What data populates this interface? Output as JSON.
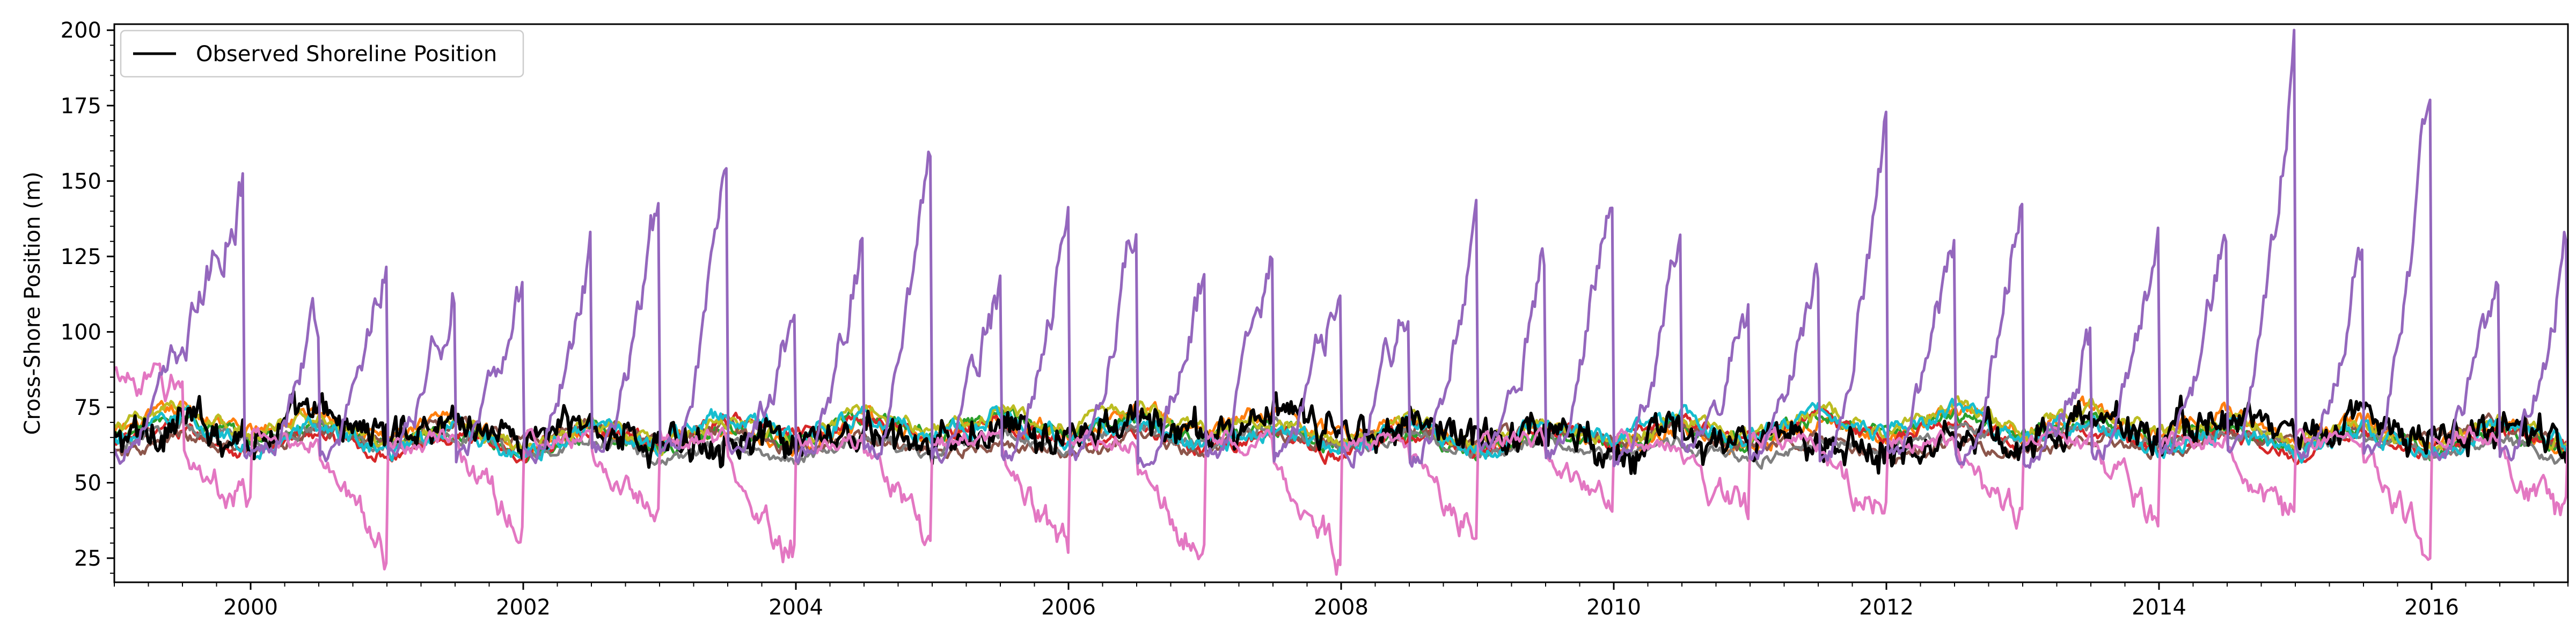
{
  "chart_data": {
    "type": "line",
    "title": "",
    "xlabel": "",
    "ylabel": "Cross-Shore Position (m)",
    "xlim": [
      "1999-01-01",
      "2017-01-01"
    ],
    "ylim": [
      17,
      202
    ],
    "x_major_ticks": [
      "2000",
      "2002",
      "2004",
      "2006",
      "2008",
      "2010",
      "2012",
      "2014",
      "2016"
    ],
    "y_major_ticks": [
      25,
      50,
      75,
      100,
      125,
      150,
      175,
      200
    ],
    "grid": false,
    "legend": {
      "position": "top-left",
      "entries": [
        "Observed Shoreline Position"
      ]
    },
    "series": [
      {
        "name": "Observed Shoreline Position",
        "color": "#000000",
        "kind": "observed",
        "base": 65,
        "amp": 6,
        "noise": 3.2
      },
      {
        "color": "#ff7f0e",
        "kind": "model",
        "base": 66,
        "amp": 8,
        "noise": 1.8
      },
      {
        "color": "#2ca02c",
        "kind": "model",
        "base": 65,
        "amp": 7,
        "noise": 1.6
      },
      {
        "color": "#d62728",
        "kind": "model",
        "base": 64,
        "amp": 7,
        "noise": 1.6
      },
      {
        "color": "#9467bd",
        "kind": "model_purple",
        "base": 60,
        "amp": 0,
        "noise": 2.2
      },
      {
        "color": "#8c564b",
        "kind": "model",
        "base": 63,
        "amp": 6,
        "noise": 1.5
      },
      {
        "color": "#e377c2",
        "kind": "model_pink",
        "base": 68,
        "amp": 0,
        "noise": 2.0
      },
      {
        "color": "#7f7f7f",
        "kind": "model",
        "base": 62,
        "amp": 6,
        "noise": 1.5
      },
      {
        "color": "#bcbd22",
        "kind": "model",
        "base": 67,
        "amp": 8,
        "noise": 1.7
      },
      {
        "color": "#17becf",
        "kind": "model",
        "base": 65,
        "amp": 9,
        "noise": 2.0
      }
    ],
    "purple_cycles": [
      {
        "t0": 1999.08,
        "t1": 1999.95,
        "peak": 152
      },
      {
        "t0": 2000.1,
        "t1": 2000.5,
        "peak": 107
      },
      {
        "t0": 2000.6,
        "t1": 2001.0,
        "peak": 126
      },
      {
        "t0": 2001.1,
        "t1": 2001.5,
        "peak": 118
      },
      {
        "t0": 2001.6,
        "t1": 2002.0,
        "peak": 120
      },
      {
        "t0": 2002.1,
        "t1": 2002.5,
        "peak": 131
      },
      {
        "t0": 2002.6,
        "t1": 2003.0,
        "peak": 146
      },
      {
        "t0": 2003.1,
        "t1": 2003.5,
        "peak": 150
      },
      {
        "t0": 2003.6,
        "t1": 2004.0,
        "peak": 110
      },
      {
        "t0": 2004.1,
        "t1": 2004.5,
        "peak": 137
      },
      {
        "t0": 2004.6,
        "t1": 2005.0,
        "peak": 168
      },
      {
        "t0": 2005.1,
        "t1": 2005.5,
        "peak": 118
      },
      {
        "t0": 2005.6,
        "t1": 2006.0,
        "peak": 135
      },
      {
        "t0": 2006.1,
        "t1": 2006.5,
        "peak": 144
      },
      {
        "t0": 2006.6,
        "t1": 2007.0,
        "peak": 117
      },
      {
        "t0": 2007.1,
        "t1": 2007.5,
        "peak": 131
      },
      {
        "t0": 2007.6,
        "t1": 2008.0,
        "peak": 122
      },
      {
        "t0": 2008.1,
        "t1": 2008.5,
        "peak": 117
      },
      {
        "t0": 2008.6,
        "t1": 2009.0,
        "peak": 132
      },
      {
        "t0": 2009.1,
        "t1": 2009.5,
        "peak": 122
      },
      {
        "t0": 2009.6,
        "t1": 2010.0,
        "peak": 158
      },
      {
        "t0": 2010.1,
        "t1": 2010.5,
        "peak": 133
      },
      {
        "t0": 2010.6,
        "t1": 2011.0,
        "peak": 114
      },
      {
        "t0": 2011.1,
        "t1": 2011.5,
        "peak": 122
      },
      {
        "t0": 2011.6,
        "t1": 2012.0,
        "peak": 176
      },
      {
        "t0": 2012.1,
        "t1": 2012.5,
        "peak": 133
      },
      {
        "t0": 2012.6,
        "t1": 2013.0,
        "peak": 150
      },
      {
        "t0": 2013.1,
        "t1": 2013.5,
        "peak": 95
      },
      {
        "t0": 2013.6,
        "t1": 2014.0,
        "peak": 130
      },
      {
        "t0": 2014.1,
        "t1": 2014.5,
        "peak": 138
      },
      {
        "t0": 2014.6,
        "t1": 2015.0,
        "peak": 196
      },
      {
        "t0": 2015.1,
        "t1": 2015.5,
        "peak": 136
      },
      {
        "t0": 2015.6,
        "t1": 2016.0,
        "peak": 183
      },
      {
        "t0": 2016.1,
        "t1": 2016.5,
        "peak": 125
      },
      {
        "t0": 2016.6,
        "t1": 2017.0,
        "peak": 131
      }
    ],
    "pink_cycles": [
      {
        "t0": 1999.0,
        "t1": 1999.5,
        "peak": 86,
        "low": 80
      },
      {
        "t0": 1999.5,
        "t1": 2000.0,
        "peak": 60,
        "low": 41
      },
      {
        "t0": 2000.5,
        "t1": 2001.0,
        "peak": 60,
        "low": 28
      },
      {
        "t0": 2001.5,
        "t1": 2002.0,
        "peak": 62,
        "low": 36
      },
      {
        "t0": 2002.5,
        "t1": 2003.0,
        "peak": 60,
        "low": 36
      },
      {
        "t0": 2003.5,
        "t1": 2004.0,
        "peak": 58,
        "low": 27
      },
      {
        "t0": 2004.5,
        "t1": 2005.0,
        "peak": 60,
        "low": 35
      },
      {
        "t0": 2005.5,
        "t1": 2006.0,
        "peak": 60,
        "low": 28
      },
      {
        "t0": 2006.5,
        "t1": 2007.0,
        "peak": 58,
        "low": 25
      },
      {
        "t0": 2007.5,
        "t1": 2008.0,
        "peak": 58,
        "low": 26
      },
      {
        "t0": 2008.5,
        "t1": 2009.0,
        "peak": 58,
        "low": 34
      },
      {
        "t0": 2009.5,
        "t1": 2010.0,
        "peak": 60,
        "low": 36
      },
      {
        "t0": 2010.5,
        "t1": 2011.0,
        "peak": 60,
        "low": 36
      },
      {
        "t0": 2011.5,
        "t1": 2012.0,
        "peak": 62,
        "low": 38
      },
      {
        "t0": 2012.5,
        "t1": 2013.0,
        "peak": 60,
        "low": 35
      },
      {
        "t0": 2013.5,
        "t1": 2014.0,
        "peak": 62,
        "low": 38
      },
      {
        "t0": 2014.5,
        "t1": 2015.0,
        "peak": 62,
        "low": 35
      },
      {
        "t0": 2015.5,
        "t1": 2016.0,
        "peak": 60,
        "low": 28
      },
      {
        "t0": 2016.5,
        "t1": 2017.0,
        "peak": 60,
        "low": 34
      }
    ]
  }
}
